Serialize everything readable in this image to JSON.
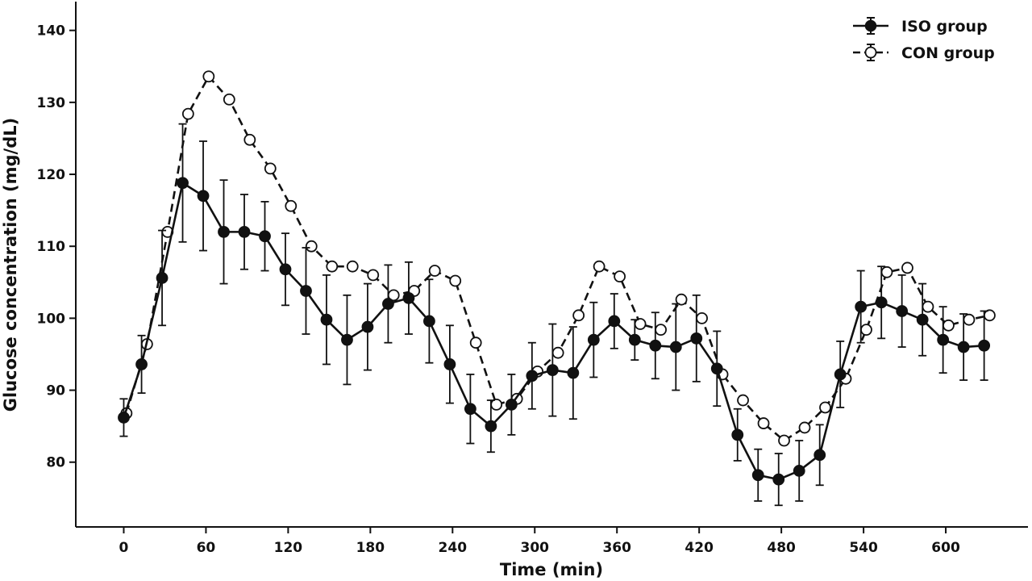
{
  "chart_data": {
    "type": "line",
    "title": "",
    "xlabel": "Time (min)",
    "ylabel": "Glucose concentration (mg/dL)",
    "xlim": [
      -35,
      660
    ],
    "ylim": [
      71,
      144
    ],
    "xticks": [
      0,
      60,
      120,
      180,
      240,
      300,
      360,
      420,
      480,
      540,
      600
    ],
    "yticks": [
      80,
      90,
      100,
      110,
      120,
      130,
      140
    ],
    "legend": {
      "position": "top-right"
    },
    "grid": false,
    "series": [
      {
        "name": "ISO group",
        "style": "solid",
        "marker": "filled-circle",
        "color": "#111111",
        "x": [
          0,
          13,
          28,
          43,
          58,
          73,
          88,
          103,
          118,
          133,
          148,
          163,
          178,
          193,
          208,
          223,
          238,
          253,
          268,
          283,
          298,
          313,
          328,
          343,
          358,
          373,
          388,
          403,
          418,
          433,
          448,
          463,
          478,
          493,
          508,
          523,
          538,
          553,
          568,
          583,
          598,
          613,
          628
        ],
        "y": [
          86.2,
          93.6,
          105.6,
          118.8,
          117.0,
          112.0,
          112.0,
          111.4,
          106.8,
          103.8,
          99.8,
          97.0,
          98.8,
          102.0,
          102.8,
          99.6,
          93.6,
          87.4,
          85.0,
          88.0,
          92.0,
          92.8,
          92.4,
          97.0,
          99.6,
          97.0,
          96.2,
          96.0,
          97.2,
          93.0,
          83.8,
          78.2,
          77.6,
          78.8,
          81.0,
          92.2,
          101.6,
          102.2,
          101.0,
          99.8,
          97.0,
          96.0,
          96.2
        ],
        "err": [
          2.6,
          4.0,
          6.6,
          8.2,
          7.6,
          7.2,
          5.2,
          4.8,
          5.0,
          6.0,
          6.2,
          6.2,
          6.0,
          5.4,
          5.0,
          5.8,
          5.4,
          4.8,
          3.6,
          4.2,
          4.6,
          6.4,
          6.4,
          5.2,
          3.8,
          2.8,
          4.6,
          6.0,
          6.0,
          5.2,
          3.6,
          3.6,
          3.6,
          4.2,
          4.2,
          4.6,
          5.0,
          5.0,
          5.0,
          5.0,
          4.6,
          4.6,
          4.8
        ]
      },
      {
        "name": "CON group",
        "style": "dashed",
        "marker": "open-circle",
        "color": "#111111",
        "x": [
          2,
          17,
          32,
          47,
          62,
          77,
          92,
          107,
          122,
          137,
          152,
          167,
          182,
          197,
          212,
          227,
          242,
          257,
          272,
          287,
          302,
          317,
          332,
          347,
          362,
          377,
          392,
          407,
          422,
          437,
          452,
          467,
          482,
          497,
          512,
          527,
          542,
          557,
          572,
          587,
          602,
          617,
          632
        ],
        "y": [
          86.8,
          96.4,
          112.0,
          128.4,
          133.6,
          130.4,
          124.8,
          120.8,
          115.6,
          110.0,
          107.2,
          107.2,
          106.0,
          103.2,
          103.8,
          106.6,
          105.2,
          96.6,
          88.0,
          88.8,
          92.6,
          95.2,
          100.4,
          107.2,
          105.8,
          99.2,
          98.4,
          102.6,
          100.0,
          92.2,
          88.6,
          85.4,
          83.0,
          84.8,
          87.6,
          91.6,
          98.4,
          106.4,
          107.0,
          101.6,
          99.0,
          99.8,
          100.4
        ]
      }
    ]
  }
}
